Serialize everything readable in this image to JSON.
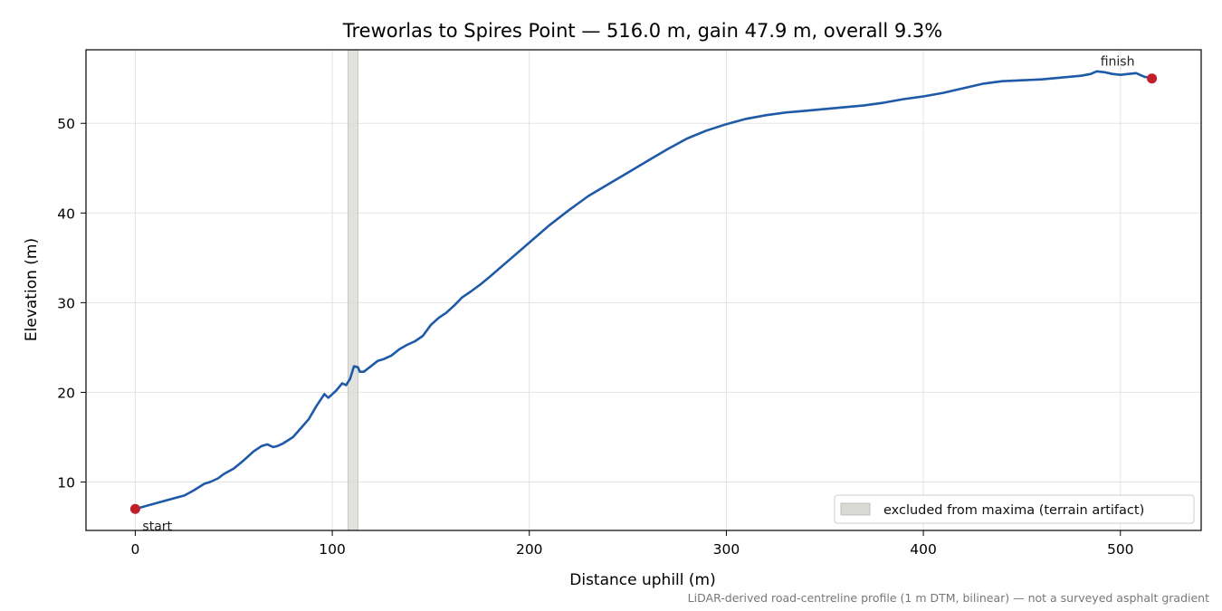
{
  "chart_data": {
    "type": "line",
    "title": "Treworlas to Spires Point — 516.0 m, gain 47.9 m, overall 9.3%",
    "xlabel": "Distance uphill (m)",
    "ylabel": "Elevation (m)",
    "xlim": [
      -25,
      541
    ],
    "ylim": [
      4.6,
      58.2
    ],
    "xticks": [
      0,
      100,
      200,
      300,
      400,
      500
    ],
    "yticks": [
      10,
      20,
      30,
      40,
      50
    ],
    "grid": true,
    "legend_position": "lower-right",
    "footnote": "LiDAR-derived road-centreline profile (1 m DTM, bilinear) — not a surveyed asphalt gradient",
    "excluded_band": {
      "x_start": 108,
      "x_end": 113,
      "label": "excluded from maxima (terrain artifact)"
    },
    "series": [
      {
        "color": "#1f5aa8",
        "x": [
          0,
          5,
          10,
          15,
          20,
          25,
          30,
          35,
          38,
          42,
          45,
          50,
          55,
          60,
          64,
          67,
          70,
          72,
          75,
          80,
          84,
          88,
          92,
          96,
          98,
          100,
          102,
          105,
          107,
          109,
          111,
          113,
          114,
          116,
          119,
          123,
          126,
          130,
          134,
          138,
          142,
          146,
          150,
          154,
          158,
          162,
          166,
          170,
          175,
          180,
          190,
          200,
          210,
          220,
          230,
          240,
          250,
          260,
          270,
          280,
          290,
          300,
          310,
          320,
          330,
          340,
          350,
          360,
          370,
          380,
          390,
          400,
          410,
          420,
          430,
          440,
          450,
          460,
          470,
          480,
          485,
          488,
          492,
          496,
          500,
          504,
          508,
          512,
          516
        ],
        "y": [
          7.0,
          7.3,
          7.6,
          7.9,
          8.2,
          8.5,
          9.1,
          9.8,
          10.0,
          10.4,
          10.9,
          11.5,
          12.4,
          13.4,
          14.0,
          14.2,
          13.9,
          14.0,
          14.3,
          15.0,
          16.0,
          17.0,
          18.5,
          19.8,
          19.4,
          19.8,
          20.2,
          21.0,
          20.8,
          21.5,
          22.9,
          22.8,
          22.3,
          22.3,
          22.8,
          23.5,
          23.7,
          24.1,
          24.8,
          25.3,
          25.7,
          26.3,
          27.5,
          28.3,
          28.9,
          29.7,
          30.6,
          31.2,
          32.0,
          32.9,
          34.8,
          36.7,
          38.6,
          40.3,
          41.9,
          43.2,
          44.5,
          45.8,
          47.1,
          48.3,
          49.2,
          49.9,
          50.5,
          50.9,
          51.2,
          51.4,
          51.6,
          51.8,
          52.0,
          52.3,
          52.7,
          53.0,
          53.4,
          53.9,
          54.4,
          54.7,
          54.8,
          54.9,
          55.1,
          55.3,
          55.5,
          55.8,
          55.7,
          55.5,
          55.4,
          55.5,
          55.6,
          55.2,
          55.0
        ]
      }
    ],
    "markers": [
      {
        "x": 0,
        "y": 7.0,
        "label": "start",
        "color": "#c01f2a"
      },
      {
        "x": 516,
        "y": 55.0,
        "label": "finish",
        "color": "#c01f2a"
      }
    ]
  }
}
